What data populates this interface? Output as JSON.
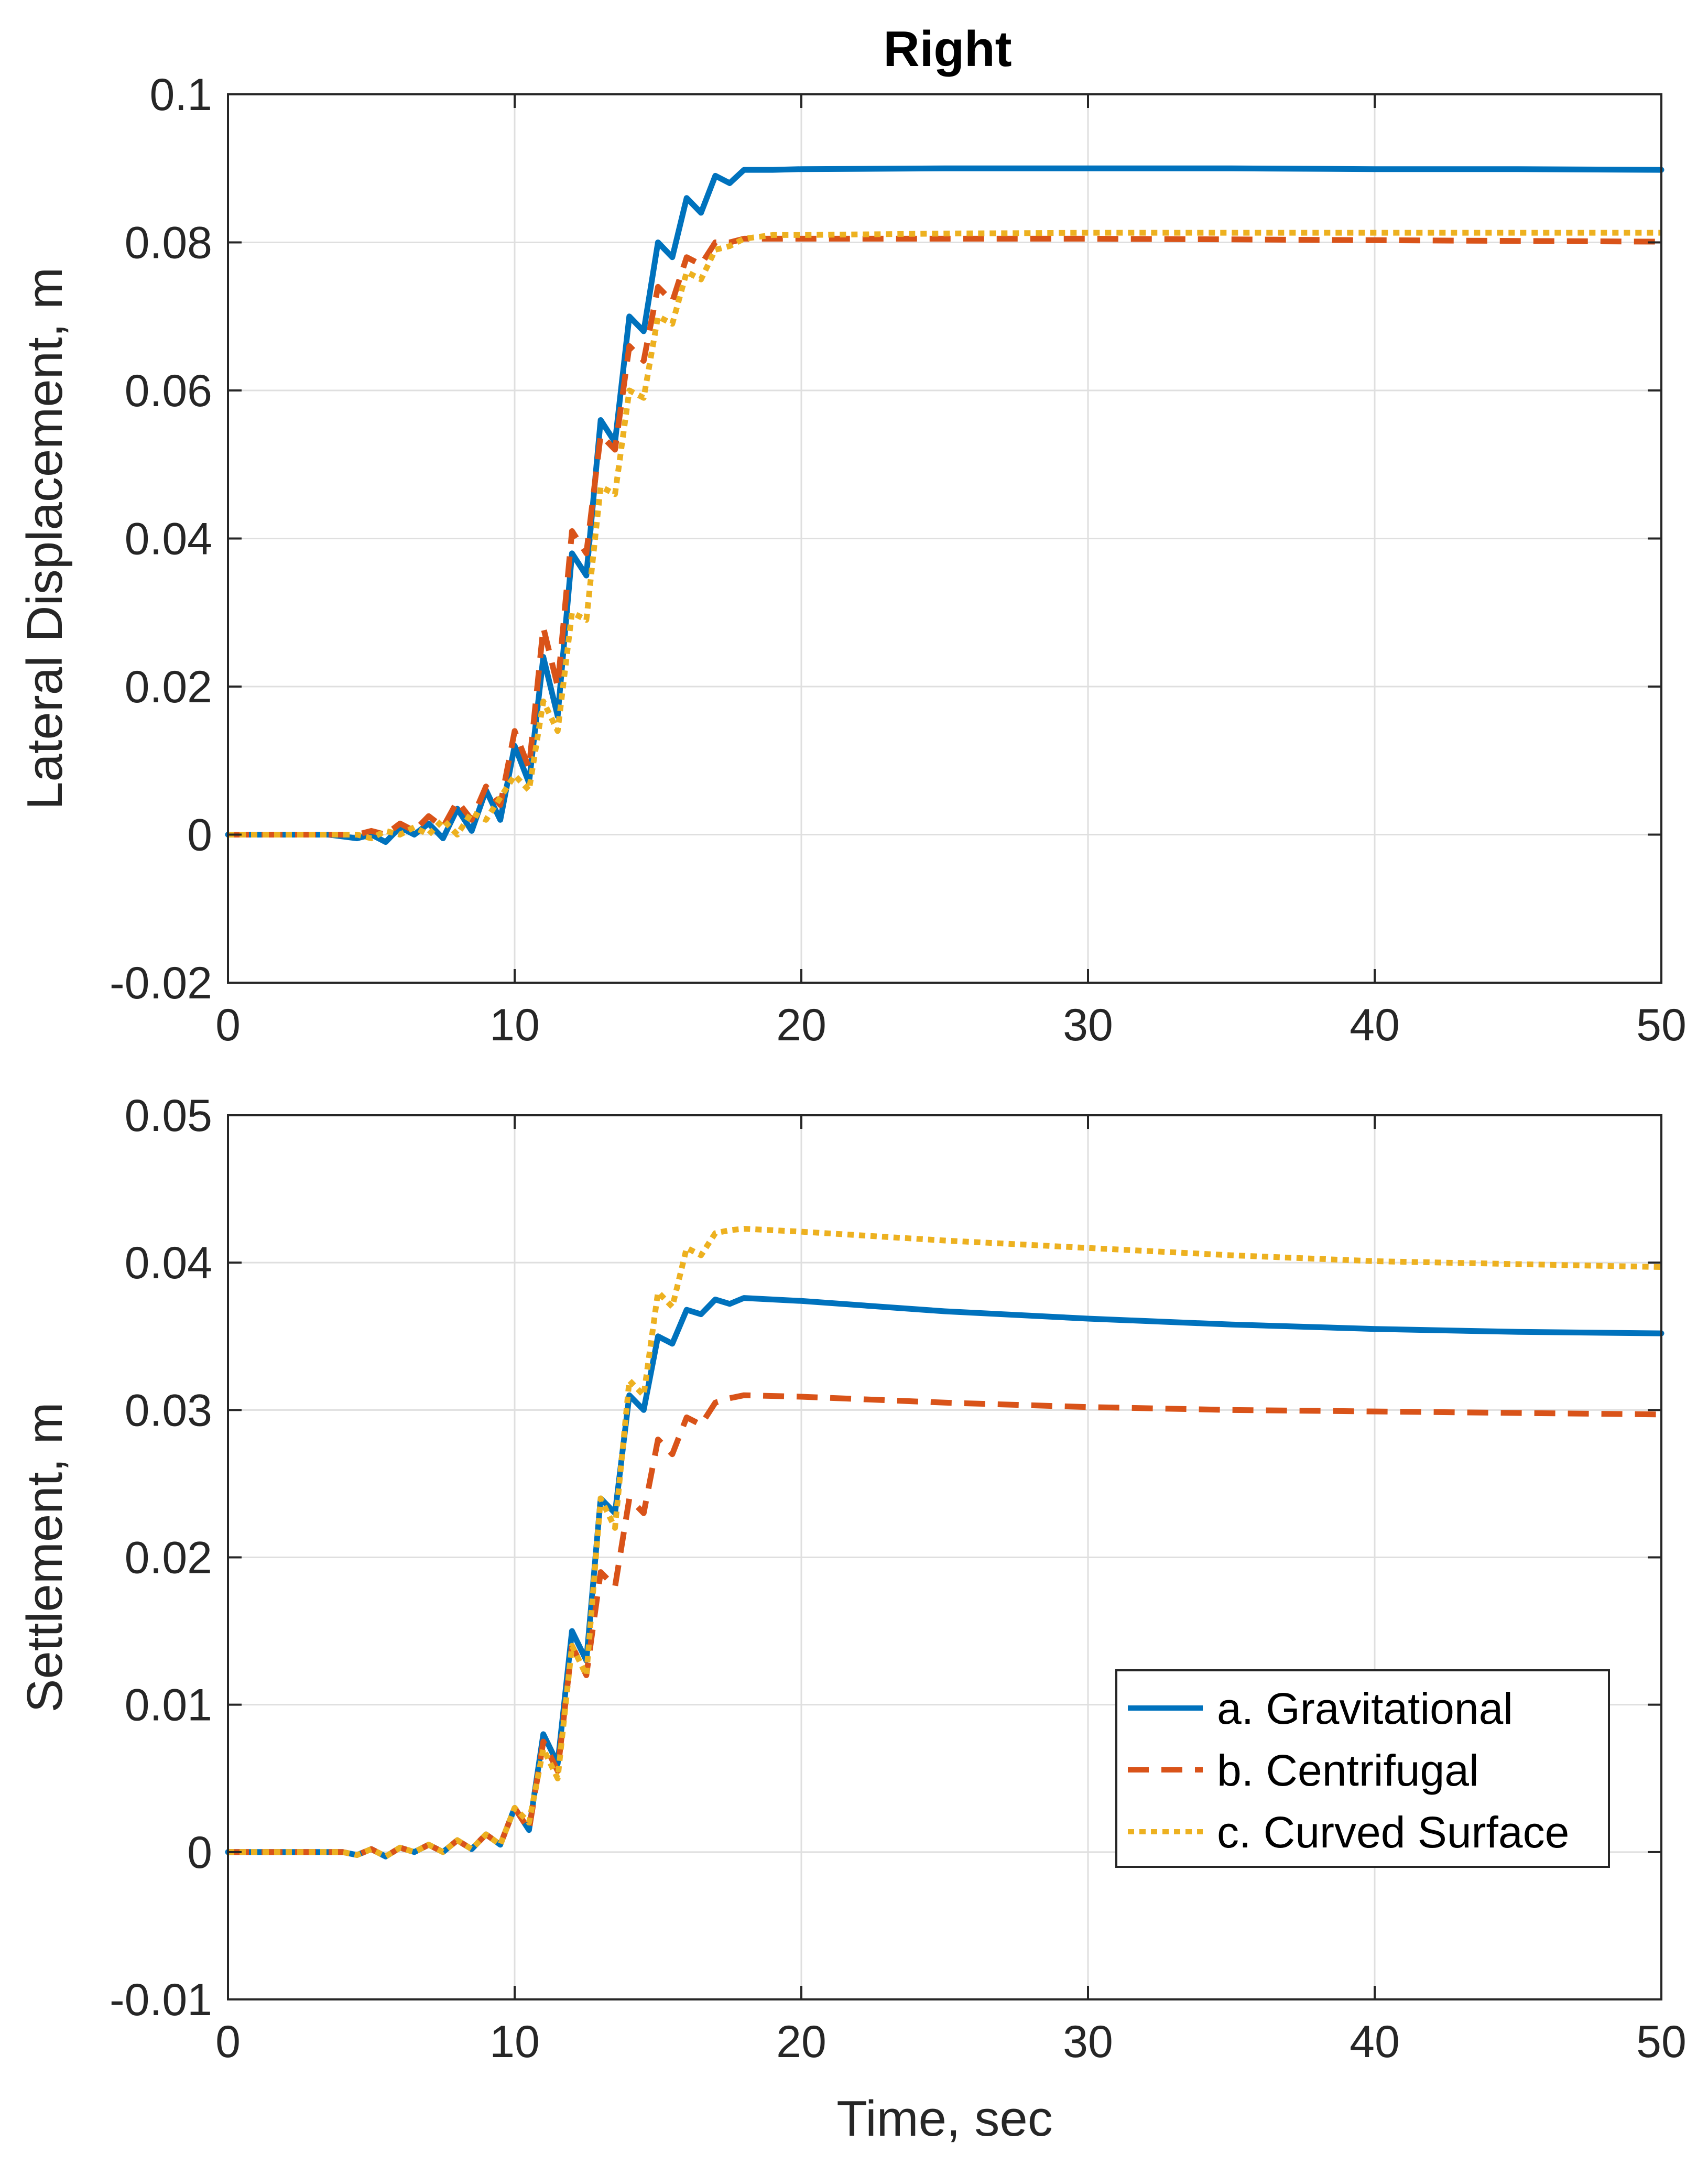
{
  "figure_title": "Right",
  "colors": {
    "gravitational": "#0072BD",
    "centrifugal": "#D95319",
    "curved": "#EDB120",
    "grid": "#DFDFDF",
    "axis": "#262626"
  },
  "chart_data": [
    {
      "type": "line",
      "title": "Right",
      "xlabel": "",
      "ylabel": "Lateral Displacement, m",
      "xlim": [
        0,
        50
      ],
      "ylim": [
        -0.02,
        0.1
      ],
      "xticks": [
        0,
        10,
        20,
        30,
        40,
        50
      ],
      "xtick_labels": [
        "0",
        "10",
        "20",
        "30",
        "40",
        "50"
      ],
      "yticks": [
        -0.02,
        0,
        0.02,
        0.04,
        0.06,
        0.08,
        0.1
      ],
      "ytick_labels": [
        "-0.02",
        "0",
        "0.02",
        "0.04",
        "0.06",
        "0.08",
        "0.1"
      ],
      "grid": true,
      "series": [
        {
          "name": "a. Gravitational",
          "style": "solid",
          "x": [
            0,
            3.5,
            4.5,
            5,
            5.5,
            6,
            6.5,
            7,
            7.5,
            8,
            8.5,
            9,
            9.5,
            10,
            10.5,
            11,
            11.5,
            12,
            12.5,
            13,
            13.5,
            14,
            14.5,
            15,
            15.5,
            16,
            16.5,
            17,
            17.5,
            18,
            19,
            20,
            25,
            30,
            35,
            40,
            45,
            50
          ],
          "y": [
            0,
            0,
            -0.0005,
            0,
            -0.001,
            0.001,
            0,
            0.0015,
            -0.0005,
            0.0035,
            0.0005,
            0.006,
            0.002,
            0.012,
            0.007,
            0.024,
            0.016,
            0.038,
            0.035,
            0.056,
            0.053,
            0.07,
            0.068,
            0.08,
            0.078,
            0.086,
            0.084,
            0.089,
            0.088,
            0.0898,
            0.0898,
            0.0899,
            0.09,
            0.09,
            0.09,
            0.0899,
            0.0899,
            0.0898
          ]
        },
        {
          "name": "b. Centrifugal",
          "style": "dashed",
          "x": [
            0,
            3.5,
            4.5,
            5,
            5.5,
            6,
            6.5,
            7,
            7.5,
            8,
            8.5,
            9,
            9.5,
            10,
            10.5,
            11,
            11.5,
            12,
            12.5,
            13,
            13.5,
            14,
            14.5,
            15,
            15.5,
            16,
            16.5,
            17,
            17.5,
            18,
            19,
            20,
            25,
            30,
            35,
            40,
            45,
            50
          ],
          "y": [
            0,
            0,
            0,
            0.0005,
            0,
            0.0015,
            0.0005,
            0.0025,
            0.001,
            0.0045,
            0.002,
            0.0065,
            0.004,
            0.014,
            0.009,
            0.028,
            0.02,
            0.041,
            0.038,
            0.054,
            0.052,
            0.066,
            0.064,
            0.074,
            0.072,
            0.078,
            0.077,
            0.08,
            0.08,
            0.0805,
            0.0805,
            0.0805,
            0.0805,
            0.0805,
            0.0804,
            0.0803,
            0.0802,
            0.0801
          ]
        },
        {
          "name": "c. Curved Surface",
          "style": "dotted",
          "x": [
            0,
            3.5,
            4.5,
            5,
            5.5,
            6,
            6.5,
            7,
            7.5,
            8,
            8.5,
            9,
            9.5,
            10,
            10.5,
            11,
            11.5,
            12,
            12.5,
            13,
            13.5,
            14,
            14.5,
            15,
            15.5,
            16,
            16.5,
            17,
            17.5,
            18,
            19,
            20,
            25,
            30,
            35,
            40,
            45,
            50
          ],
          "y": [
            0,
            0,
            0,
            -0.0005,
            0.0005,
            0,
            0.001,
            0,
            0.002,
            0,
            0.003,
            0.002,
            0.005,
            0.008,
            0.006,
            0.018,
            0.014,
            0.03,
            0.029,
            0.047,
            0.046,
            0.06,
            0.059,
            0.07,
            0.069,
            0.076,
            0.075,
            0.079,
            0.0795,
            0.0805,
            0.081,
            0.081,
            0.0812,
            0.0813,
            0.0813,
            0.0813,
            0.0813,
            0.0813
          ]
        }
      ]
    },
    {
      "type": "line",
      "title": "",
      "xlabel": "Time, sec",
      "ylabel": "Settlement, m",
      "xlim": [
        0,
        50
      ],
      "ylim": [
        -0.01,
        0.05
      ],
      "xticks": [
        0,
        10,
        20,
        30,
        40,
        50
      ],
      "xtick_labels": [
        "0",
        "10",
        "20",
        "30",
        "40",
        "50"
      ],
      "yticks": [
        -0.01,
        0,
        0.01,
        0.02,
        0.03,
        0.04,
        0.05
      ],
      "ytick_labels": [
        "-0.01",
        "0",
        "0.01",
        "0.02",
        "0.03",
        "0.04",
        "0.05"
      ],
      "grid": true,
      "legend_position": "lower-right",
      "series": [
        {
          "name": "a. Gravitational",
          "style": "solid",
          "x": [
            0,
            4,
            4.5,
            5,
            5.5,
            6,
            6.5,
            7,
            7.5,
            8,
            8.5,
            9,
            9.5,
            10,
            10.5,
            11,
            11.5,
            12,
            12.5,
            13,
            13.5,
            14,
            14.5,
            15,
            15.5,
            16,
            16.5,
            17,
            17.5,
            18,
            20,
            25,
            30,
            35,
            40,
            45,
            50
          ],
          "y": [
            0,
            0,
            -0.0002,
            0.0002,
            -0.0003,
            0.0003,
            0,
            0.0005,
            0,
            0.0008,
            0.0002,
            0.0012,
            0.0005,
            0.003,
            0.0015,
            0.008,
            0.006,
            0.015,
            0.013,
            0.024,
            0.023,
            0.031,
            0.03,
            0.035,
            0.0345,
            0.0368,
            0.0365,
            0.0375,
            0.0372,
            0.0376,
            0.0374,
            0.0367,
            0.0362,
            0.0358,
            0.0355,
            0.0353,
            0.0352
          ]
        },
        {
          "name": "b. Centrifugal",
          "style": "dashed",
          "x": [
            0,
            4,
            4.5,
            5,
            5.5,
            6,
            6.5,
            7,
            7.5,
            8,
            8.5,
            9,
            9.5,
            10,
            10.5,
            11,
            11.5,
            12,
            12.5,
            13,
            13.5,
            14,
            14.5,
            15,
            15.5,
            16,
            16.5,
            17,
            17.5,
            18,
            20,
            25,
            30,
            35,
            40,
            45,
            50
          ],
          "y": [
            0,
            0,
            -0.0002,
            0.0002,
            -0.0003,
            0.0003,
            0,
            0.0005,
            0,
            0.0008,
            0.0002,
            0.0012,
            0.0005,
            0.003,
            0.0015,
            0.0075,
            0.0055,
            0.014,
            0.012,
            0.019,
            0.018,
            0.024,
            0.023,
            0.028,
            0.027,
            0.0295,
            0.029,
            0.0305,
            0.0308,
            0.031,
            0.0309,
            0.0305,
            0.0302,
            0.03,
            0.0299,
            0.0298,
            0.0297
          ]
        },
        {
          "name": "c. Curved Surface",
          "style": "dotted",
          "x": [
            0,
            4,
            4.5,
            5,
            5.5,
            6,
            6.5,
            7,
            7.5,
            8,
            8.5,
            9,
            9.5,
            10,
            10.5,
            11,
            11.5,
            12,
            12.5,
            13,
            13.5,
            14,
            14.5,
            15,
            15.5,
            16,
            16.5,
            17,
            17.5,
            18,
            20,
            25,
            30,
            35,
            40,
            45,
            50
          ],
          "y": [
            0,
            0,
            -0.0002,
            0.0002,
            -0.0003,
            0.0003,
            0,
            0.0005,
            0,
            0.0008,
            0.0002,
            0.0012,
            0.0005,
            0.003,
            0.002,
            0.007,
            0.005,
            0.014,
            0.012,
            0.024,
            0.022,
            0.032,
            0.031,
            0.038,
            0.037,
            0.041,
            0.0405,
            0.042,
            0.0422,
            0.0423,
            0.0421,
            0.0415,
            0.041,
            0.0405,
            0.0401,
            0.0399,
            0.0397
          ]
        }
      ]
    }
  ]
}
